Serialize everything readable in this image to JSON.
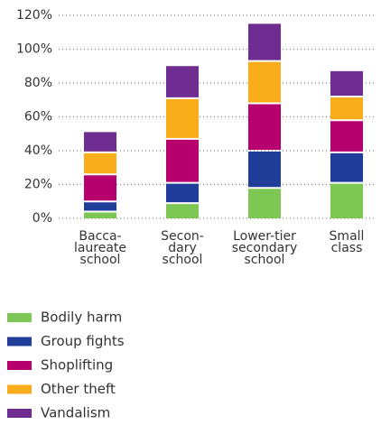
{
  "chart_data": {
    "type": "stacked_bar",
    "categories": [
      "Bacca-\nlaureate\nschool",
      "Secon-\ndary\nschool",
      "Lower-tier\nsecondary\nschool",
      "Small\nclass"
    ],
    "series": [
      {
        "name": "Bodily harm",
        "color": "#7dc855",
        "values": [
          4,
          9,
          18,
          21
        ]
      },
      {
        "name": "Group fights",
        "color": "#1f3d99",
        "values": [
          6,
          12,
          22,
          18
        ]
      },
      {
        "name": "Shoplifting",
        "color": "#b5006e",
        "values": [
          16,
          26,
          28,
          19
        ]
      },
      {
        "name": "Other theft",
        "color": "#f9ad1a",
        "values": [
          13,
          24,
          25,
          14
        ]
      },
      {
        "name": "Vandalism",
        "color": "#6f2c91",
        "values": [
          12,
          19,
          22,
          15
        ]
      }
    ],
    "ylim": [
      0,
      120
    ],
    "yticks": [
      {
        "value": 0,
        "label": "0%"
      },
      {
        "value": 20,
        "label": "20%"
      },
      {
        "value": 40,
        "label": "40%"
      },
      {
        "value": 60,
        "label": "60%"
      },
      {
        "value": 80,
        "label": "80%"
      },
      {
        "value": 100,
        "label": "100%"
      },
      {
        "value": 120,
        "label": "120%"
      }
    ],
    "grid": true
  }
}
